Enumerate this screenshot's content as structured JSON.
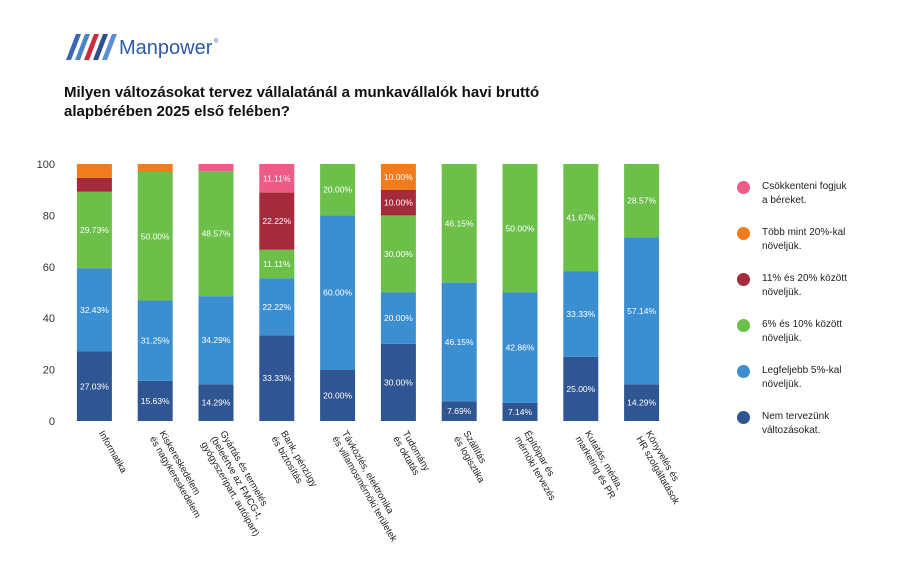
{
  "brand": {
    "name": "Manpower",
    "mark": "®",
    "stripe_colors": [
      "#3b66b0",
      "#4a83c8",
      "#cc2b37",
      "#2f4f8f",
      "#5b8ed6"
    ],
    "text_color": "#2f5aa8"
  },
  "title": "Milyen változásokat tervez vállalatánál a munkavállalók havi bruttó alapbérében 2025 első felében?",
  "chart_data": {
    "type": "bar",
    "stacked": true,
    "title": "Milyen változásokat tervez vállalatánál a munkavállalók havi bruttó alapbérében 2025 első felében?",
    "xlabel": "",
    "ylabel": "",
    "ylim": [
      0,
      100
    ],
    "yticks": [
      0,
      20,
      40,
      60,
      80,
      100
    ],
    "grid": false,
    "legend_position": "right",
    "categories": [
      [
        "Informatika"
      ],
      [
        "Kiskereskedelem",
        "és nagykereskedelem"
      ],
      [
        "Gyártás és termelés",
        "(beleértve az FMCG-t,",
        "gyógyszeripart, autóipart)"
      ],
      [
        "Bank, pénzügy",
        "és biztosítás"
      ],
      [
        "Távközlés, elektronika",
        "és villamosmérnöki területek"
      ],
      [
        "Tudomány",
        "és oktatás"
      ],
      [
        "Szállítás",
        "és logisztika"
      ],
      [
        "Építőipar és",
        "mérnöki tervezés"
      ],
      [
        "Kutatás, média,",
        "marketing és PR"
      ],
      [
        "Könyvelés és",
        "HR szolgáltatások"
      ]
    ],
    "series": [
      {
        "name": "Nem tervezünk változásokat.",
        "legend_label": "Nem tervezünk\nváltozásokat.",
        "color": "#2f5592",
        "values": [
          27.03,
          15.63,
          14.29,
          33.33,
          20.0,
          30.0,
          7.69,
          7.14,
          25.0,
          14.29
        ],
        "labels": [
          "27.03%",
          "15.63%",
          "14.29%",
          "33.33%",
          "20.00%",
          "30.00%",
          "7.69%",
          "7.14%",
          "25.00%",
          "14.29%"
        ]
      },
      {
        "name": "Legfeljebb 5%-kal növeljük.",
        "legend_label": "Legfeljebb 5%-kal\nnöveljük.",
        "color": "#3b8fd1",
        "values": [
          32.43,
          31.25,
          34.29,
          22.22,
          60.0,
          20.0,
          46.15,
          42.86,
          33.33,
          57.14
        ],
        "labels": [
          "32.43%",
          "31.25%",
          "34.29%",
          "22.22%",
          "60.00%",
          "20.00%",
          "46.15%",
          "42.86%",
          "33.33%",
          "57.14%"
        ]
      },
      {
        "name": "6% és 10% között növeljük.",
        "legend_label": "6% és 10% között\nnöveljük.",
        "color": "#6cc04a",
        "values": [
          29.73,
          50.0,
          48.57,
          11.11,
          20.0,
          30.0,
          46.15,
          50.0,
          41.67,
          28.57
        ],
        "labels": [
          "29.73%",
          "50.00%",
          "48.57%",
          "11.11%",
          "20.00%",
          "30.00%",
          "46.15%",
          "50.00%",
          "41.67%",
          "28.57%"
        ]
      },
      {
        "name": "11% és 20% között növeljük.",
        "legend_label": "11% és 20% között\nnöveljük.",
        "color": "#a52a3c",
        "values": [
          5.41,
          0,
          0,
          22.22,
          0,
          10.0,
          0,
          0,
          0,
          0
        ],
        "labels": [
          "",
          "",
          "",
          "22.22%",
          "",
          "10.00%",
          "",
          "",
          "",
          ""
        ]
      },
      {
        "name": "Több mint 20%-kal növeljük.",
        "legend_label": "Több mint 20%-kal\nnöveljük.",
        "color": "#f07c1e",
        "values": [
          5.41,
          3.13,
          0,
          0,
          0,
          10.0,
          0,
          0,
          0,
          0
        ],
        "labels": [
          "",
          "",
          "",
          "",
          "",
          "10.00%",
          "",
          "",
          "",
          ""
        ]
      },
      {
        "name": "Csökkenteni fogjuk a béreket.",
        "legend_label": "Csökkenteni fogjuk\na béreket.",
        "color": "#ee5b86",
        "values": [
          0,
          0,
          2.86,
          11.11,
          0,
          0,
          0,
          0,
          0,
          0
        ],
        "labels": [
          "",
          "",
          "",
          "11.11%",
          "",
          "",
          "",
          "",
          "",
          ""
        ]
      }
    ],
    "legend_order": [
      5,
      4,
      3,
      2,
      1,
      0
    ]
  }
}
